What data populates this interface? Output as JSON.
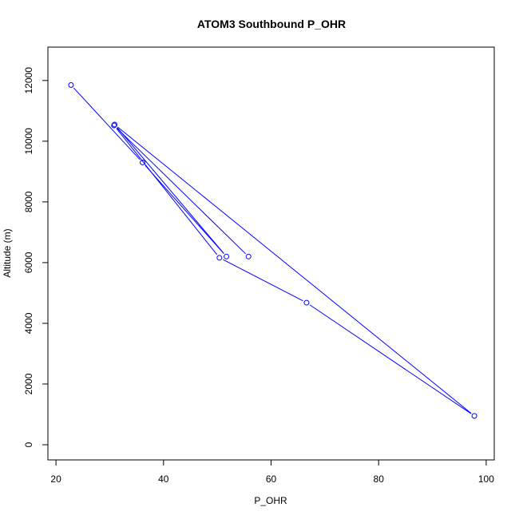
{
  "chart_data": {
    "type": "line",
    "title": "ATOM3 Southbound P_OHR",
    "xlabel": "P_OHR",
    "ylabel": "Altitude (m)",
    "xlim": [
      18.5,
      101.5
    ],
    "ylim": [
      -500,
      13100
    ],
    "x_ticks": [
      20,
      40,
      60,
      80,
      100
    ],
    "y_ticks": [
      0,
      2000,
      4000,
      6000,
      8000,
      10000,
      12000
    ],
    "grid": false,
    "markers": "open-circle",
    "color": "#0000ff",
    "points": [
      {
        "x": 22.8,
        "y": 11850
      },
      {
        "x": 36.1,
        "y": 9300
      },
      {
        "x": 51.7,
        "y": 6200
      },
      {
        "x": 30.9,
        "y": 10550
      },
      {
        "x": 97.8,
        "y": 950
      },
      {
        "x": 66.6,
        "y": 4680
      },
      {
        "x": 50.4,
        "y": 6160
      },
      {
        "x": 30.8,
        "y": 10520
      },
      {
        "x": 55.8,
        "y": 6200
      }
    ]
  }
}
